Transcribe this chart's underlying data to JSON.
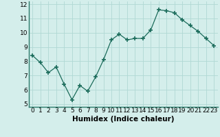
{
  "xlabel": "Humidex (Indice chaleur)",
  "x": [
    0,
    1,
    2,
    3,
    4,
    5,
    6,
    7,
    8,
    9,
    10,
    11,
    12,
    13,
    14,
    15,
    16,
    17,
    18,
    19,
    20,
    21,
    22,
    23
  ],
  "y": [
    8.4,
    7.9,
    7.2,
    7.6,
    6.4,
    5.3,
    6.3,
    5.9,
    6.9,
    8.1,
    9.5,
    9.9,
    9.5,
    9.6,
    9.6,
    10.2,
    11.6,
    11.55,
    11.4,
    10.9,
    10.5,
    10.1,
    9.6,
    9.1
  ],
  "line_color": "#1a6b5a",
  "marker": "+",
  "marker_size": 4,
  "bg_color": "#d4eeeb",
  "grid_color": "#b0d8d4",
  "ylim": [
    4.8,
    12.2
  ],
  "xlim": [
    -0.5,
    23.5
  ],
  "yticks": [
    5,
    6,
    7,
    8,
    9,
    10,
    11,
    12
  ],
  "xticks": [
    0,
    1,
    2,
    3,
    4,
    5,
    6,
    7,
    8,
    9,
    10,
    11,
    12,
    13,
    14,
    15,
    16,
    17,
    18,
    19,
    20,
    21,
    22,
    23
  ],
  "tick_label_fontsize": 6.5,
  "xlabel_fontsize": 7.5,
  "spine_color": "#2a7a6a"
}
